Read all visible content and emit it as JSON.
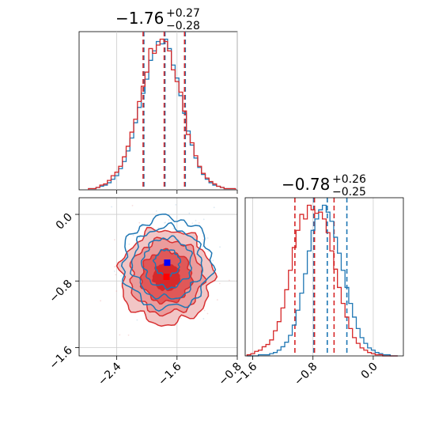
{
  "chart_data": [
    {
      "type": "histogram",
      "panel": "top-left",
      "title": {
        "main": "−1.76",
        "sup": "+0.27",
        "sub": "−0.28"
      },
      "xlim": [
        -2.9,
        -0.8
      ],
      "bins_x": [
        -2.75,
        -2.7,
        -2.65,
        -2.6,
        -2.55,
        -2.5,
        -2.45,
        -2.4,
        -2.35,
        -2.3,
        -2.25,
        -2.2,
        -2.15,
        -2.1,
        -2.05,
        -2.0,
        -1.95,
        -1.9,
        -1.85,
        -1.8,
        -1.75,
        -1.7,
        -1.65,
        -1.6,
        -1.55,
        -1.5,
        -1.45,
        -1.4,
        -1.35,
        -1.3,
        -1.25,
        -1.2,
        -1.15,
        -1.1,
        -1.05,
        -1.0,
        -0.95,
        -0.9,
        -0.85
      ],
      "series": [
        {
          "color": "#1f77b4",
          "values": [
            1,
            1,
            2,
            3,
            4,
            6,
            9,
            12,
            18,
            24,
            33,
            44,
            57,
            70,
            82,
            94,
            110,
            118,
            126,
            124,
            128,
            120,
            106,
            95,
            80,
            65,
            50,
            38,
            27,
            19,
            13,
            9,
            6,
            4,
            3,
            2,
            1,
            1,
            1
          ],
          "quantiles": [
            -2.04,
            -1.76,
            -1.49
          ]
        },
        {
          "color": "#d62728",
          "values": [
            1,
            1,
            2,
            4,
            5,
            8,
            12,
            15,
            20,
            28,
            37,
            49,
            60,
            75,
            88,
            100,
            120,
            116,
            123,
            128,
            126,
            118,
            102,
            92,
            83,
            67,
            47,
            40,
            29,
            20,
            14,
            10,
            7,
            5,
            3,
            2,
            1,
            1,
            1
          ],
          "quantiles": [
            -2.05,
            -1.77,
            -1.5
          ]
        }
      ],
      "xticks": [
        -2.4,
        -1.6,
        -0.8
      ]
    },
    {
      "type": "contour",
      "panel": "bottom-left",
      "xlim": [
        -2.9,
        -0.8
      ],
      "ylim": [
        -1.7,
        0.2
      ],
      "xticks": [
        -2.4,
        -1.6,
        -0.8
      ],
      "yticks": [
        0.0,
        -0.8,
        -1.6
      ],
      "xtick_labels": [
        "−2.4",
        "−1.6",
        "−0.8"
      ],
      "ytick_labels": [
        "0.0",
        "−0.8",
        "−1.6"
      ],
      "series": [
        {
          "color": "#d62728",
          "center": [
            -1.74,
            -0.75
          ],
          "sigma": [
            0.29,
            0.27
          ],
          "filled": true
        },
        {
          "color": "#1f77b4",
          "center": [
            -1.73,
            -0.58
          ],
          "sigma": [
            0.28,
            0.26
          ],
          "filled": false
        }
      ],
      "truth_markers": [
        {
          "color": "#0000ff",
          "x": -1.73,
          "y": -0.58
        },
        {
          "color": "#ff0000",
          "x": -1.74,
          "y": -0.75
        }
      ]
    },
    {
      "type": "histogram",
      "panel": "bottom-right",
      "title": {
        "main": "−0.78",
        "sup": "+0.26",
        "sub": "−0.25"
      },
      "xlim": [
        -1.7,
        0.4
      ],
      "xticks": [
        -1.6,
        -0.8,
        0.0
      ],
      "xtick_labels": [
        "−1.6",
        "−0.8",
        "0.0"
      ],
      "bins_x": [
        -1.65,
        -1.6,
        -1.55,
        -1.5,
        -1.45,
        -1.4,
        -1.35,
        -1.3,
        -1.25,
        -1.2,
        -1.15,
        -1.1,
        -1.05,
        -1.0,
        -0.95,
        -0.9,
        -0.85,
        -0.8,
        -0.75,
        -0.7,
        -0.65,
        -0.6,
        -0.55,
        -0.5,
        -0.45,
        -0.4,
        -0.35,
        -0.3,
        -0.25,
        -0.2,
        -0.15,
        -0.1,
        -0.05,
        0.0,
        0.05,
        0.1,
        0.15,
        0.2,
        0.25,
        0.3
      ],
      "series": [
        {
          "color": "#1f77b4",
          "values": [
            0,
            0,
            0,
            1,
            1,
            1,
            2,
            3,
            5,
            8,
            12,
            18,
            27,
            40,
            55,
            72,
            92,
            110,
            120,
            128,
            132,
            126,
            118,
            104,
            90,
            75,
            60,
            46,
            34,
            24,
            16,
            11,
            7,
            5,
            3,
            2,
            1,
            1,
            0,
            0
          ],
          "quantiles": [
            -0.79,
            -0.61,
            -0.35
          ]
        },
        {
          "color": "#d62728",
          "values": [
            1,
            2,
            4,
            5,
            8,
            10,
            14,
            22,
            30,
            42,
            58,
            75,
            95,
            110,
            124,
            120,
            132,
            128,
            125,
            126,
            120,
            108,
            92,
            76,
            60,
            46,
            34,
            24,
            16,
            11,
            7,
            5,
            3,
            2,
            1,
            1,
            0,
            0,
            0,
            0
          ],
          "quantiles": [
            -1.04,
            -0.78,
            -0.52
          ]
        }
      ]
    }
  ]
}
